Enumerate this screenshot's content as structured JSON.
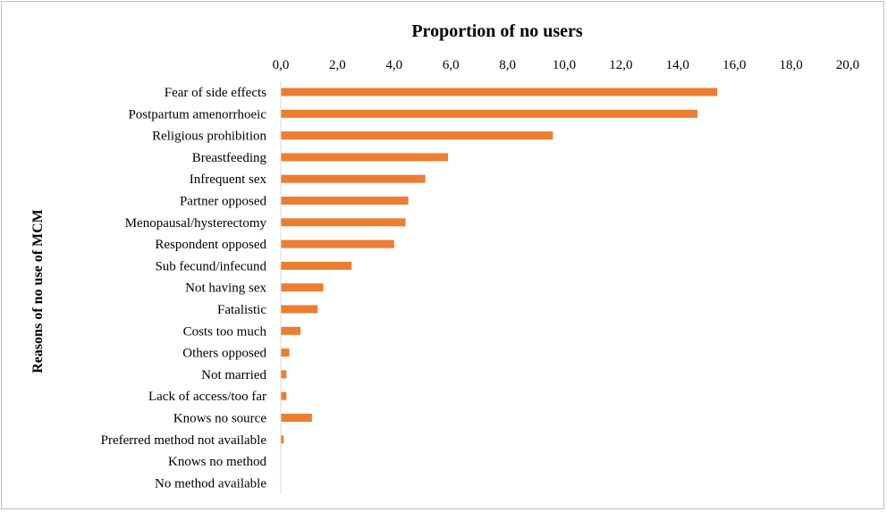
{
  "chart_data": {
    "type": "bar",
    "orientation": "horizontal",
    "title": "Proportion of no users",
    "xlabel": "",
    "ylabel": "Reasons of no use of MCM",
    "xlim": [
      0,
      20
    ],
    "x_ticks": [
      "0,0",
      "2,0",
      "4,0",
      "6,0",
      "8,0",
      "10,0",
      "12,0",
      "14,0",
      "16,0",
      "18,0",
      "20,0"
    ],
    "x_axis_position": "top",
    "grid": false,
    "bar_color": "#ED7D31",
    "categories": [
      "Fear of side effects",
      "Postpartum amenorrhoeic",
      "Religious prohibition",
      "Breastfeeding",
      "Infrequent sex",
      "Partner opposed",
      "Menopausal/hysterectomy",
      "Respondent opposed",
      "Sub fecund/infecund",
      "Not having sex",
      "Fatalistic",
      "Costs too much",
      "Others opposed",
      "Not married",
      "Lack of access/too far",
      "Knows no source",
      "Preferred method not available",
      "Knows no method",
      "No method available"
    ],
    "values": [
      15.4,
      14.7,
      9.6,
      5.9,
      5.1,
      4.5,
      4.4,
      4.0,
      2.5,
      1.5,
      1.3,
      0.7,
      0.3,
      0.2,
      0.2,
      1.1,
      0.1,
      0.0,
      0.0
    ]
  }
}
